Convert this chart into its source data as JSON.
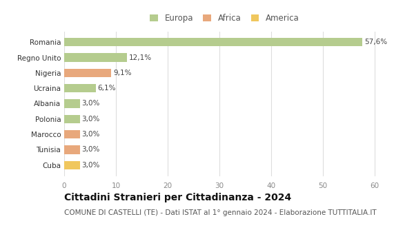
{
  "countries": [
    "Romania",
    "Regno Unito",
    "Nigeria",
    "Ucraina",
    "Albania",
    "Polonia",
    "Marocco",
    "Tunisia",
    "Cuba"
  ],
  "values": [
    57.6,
    12.1,
    9.1,
    6.1,
    3.0,
    3.0,
    3.0,
    3.0,
    3.0
  ],
  "labels": [
    "57,6%",
    "12,1%",
    "9,1%",
    "6,1%",
    "3,0%",
    "3,0%",
    "3,0%",
    "3,0%",
    "3,0%"
  ],
  "colors": [
    "#b5cc8e",
    "#b5cc8e",
    "#e8a87c",
    "#b5cc8e",
    "#b5cc8e",
    "#b5cc8e",
    "#e8a87c",
    "#e8a87c",
    "#f0c75e"
  ],
  "legend_labels": [
    "Europa",
    "Africa",
    "America"
  ],
  "legend_colors": [
    "#b5cc8e",
    "#e8a87c",
    "#f0c75e"
  ],
  "xlim": [
    0,
    62
  ],
  "xticks": [
    0,
    10,
    20,
    30,
    40,
    50,
    60
  ],
  "title": "Cittadini Stranieri per Cittadinanza - 2024",
  "subtitle": "COMUNE DI CASTELLI (TE) - Dati ISTAT al 1° gennaio 2024 - Elaborazione TUTTITALIA.IT",
  "bg_color": "#ffffff",
  "grid_color": "#dddddd",
  "bar_height": 0.55,
  "title_fontsize": 10,
  "subtitle_fontsize": 7.5,
  "label_fontsize": 7.5,
  "tick_fontsize": 7.5,
  "legend_fontsize": 8.5
}
